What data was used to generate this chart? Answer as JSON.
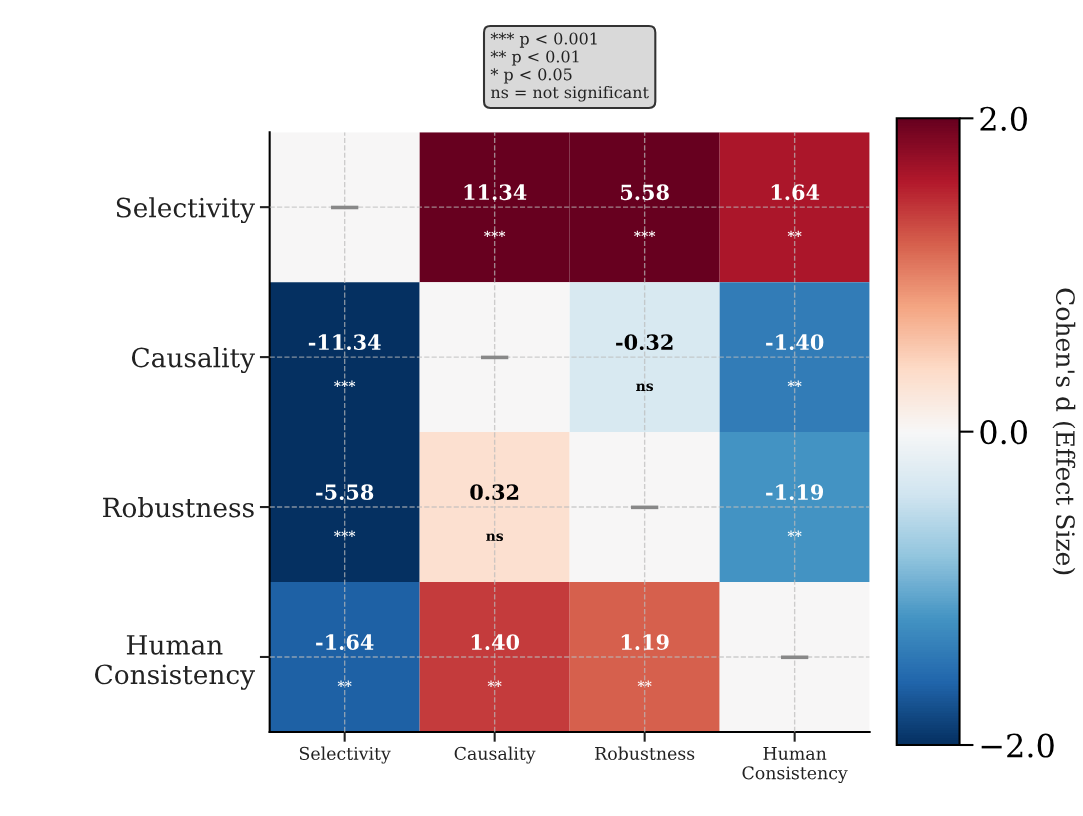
{
  "chart_data": {
    "type": "heatmap",
    "categories": [
      "Selectivity",
      "Causality",
      "Robustness",
      "Human\nConsistency"
    ],
    "y_categories": [
      "Selectivity",
      "Causality",
      "Robustness",
      "Human\nConsistency"
    ],
    "cells": [
      [
        0,
        11.34,
        5.58,
        1.64
      ],
      [
        -11.34,
        0,
        -0.32,
        -1.4
      ],
      [
        -5.58,
        0.32,
        0,
        -1.19
      ],
      [
        -1.64,
        1.4,
        1.19,
        0
      ]
    ],
    "cell_labels": [
      [
        "—",
        "11.34\n***",
        "5.58\n***",
        "1.64\n**"
      ],
      [
        "-11.34\n***",
        "—",
        "-0.32\nns",
        "-1.40\n**"
      ],
      [
        "-5.58\n***",
        "0.32\nns",
        "—",
        "-1.19\n**"
      ],
      [
        "-1.64\n**",
        "1.40\n**",
        "1.19\n**",
        "—"
      ]
    ],
    "clim": [
      -2.0,
      2.0
    ],
    "cticks": [
      {
        "value": -2.0,
        "label": "−2.0"
      },
      {
        "value": 0.0,
        "label": "0.0"
      },
      {
        "value": 2.0,
        "label": "2.0"
      }
    ],
    "clabel": "Cohen's d (Effect Size)",
    "annotations": [
      "*** p < 0.001\n** p < 0.01\n* p < 0.05\nns = not significant"
    ],
    "grid": true
  }
}
